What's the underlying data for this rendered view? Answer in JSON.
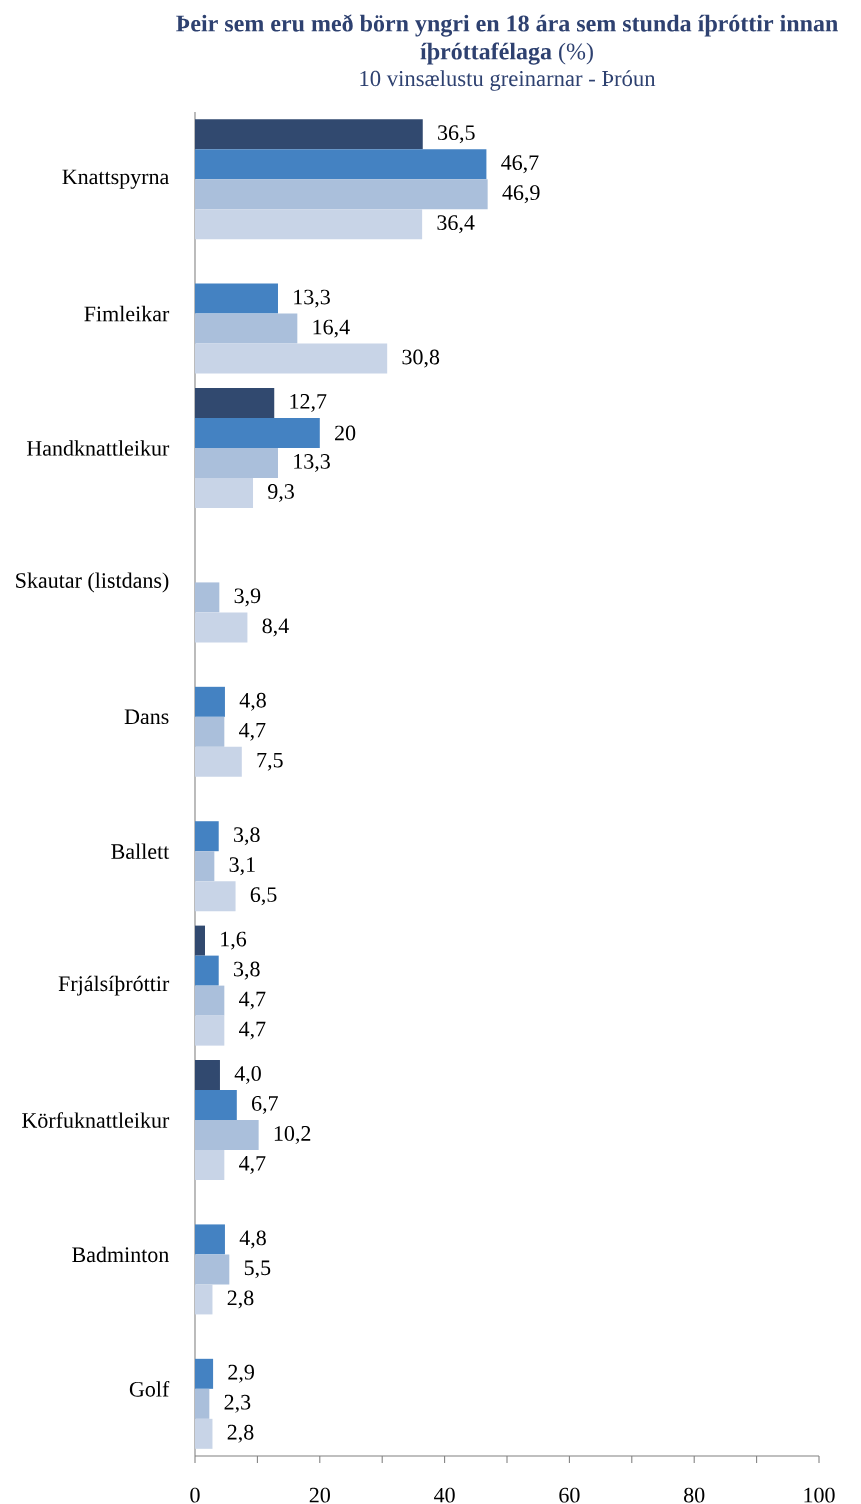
{
  "chart_data": {
    "type": "bar",
    "orientation": "horizontal",
    "title": "**Þeir sem eru með börn yngri en 18 ára sem stunda íþróttir innan íþróttafélaga** (%)",
    "subtitle": "10 vinsælustu greinarnar - Þróun",
    "categories": [
      "Knattspyrna",
      "Fimleikar",
      "Handknattleikur",
      "Skautar (listdans)",
      "Dans",
      "Ballett",
      "Frjálsíþróttir",
      "Körfuknattleikur",
      "Badminton",
      "Golf"
    ],
    "series": [
      {
        "color": "#31496f",
        "values": [
          36.5,
          null,
          12.7,
          null,
          null,
          null,
          1.6,
          4.0,
          null,
          null
        ],
        "value_labels": [
          "36,5",
          null,
          "12,7",
          null,
          null,
          null,
          "1,6",
          "4,0",
          null,
          null
        ]
      },
      {
        "color": "#4482c2",
        "values": [
          46.7,
          13.3,
          20,
          null,
          4.8,
          3.8,
          3.8,
          6.7,
          4.8,
          2.9
        ],
        "value_labels": [
          "46,7",
          "13,3",
          "20",
          null,
          "4,8",
          "3,8",
          "3,8",
          "6,7",
          "4,8",
          "2,9"
        ]
      },
      {
        "color": "#aabfdb",
        "values": [
          46.9,
          16.4,
          13.3,
          3.9,
          4.7,
          3.1,
          4.7,
          10.2,
          5.5,
          2.3
        ],
        "value_labels": [
          "46,9",
          "16,4",
          "13,3",
          "3,9",
          "4,7",
          "3,1",
          "4,7",
          "10,2",
          "5,5",
          "2,3"
        ]
      },
      {
        "color": "#c8d4e7",
        "values": [
          36.4,
          30.8,
          9.3,
          8.4,
          7.5,
          6.5,
          4.7,
          4.7,
          2.8,
          2.8
        ],
        "value_labels": [
          "36,4",
          "30,8",
          "9,3",
          "8,4",
          "7,5",
          "6,5",
          "4,7",
          "4,7",
          "2,8",
          "2,8"
        ]
      }
    ],
    "xlim": [
      0,
      100
    ],
    "xticks": [
      0,
      {
        "value": 10,
        "label": null
      },
      20,
      {
        "value": 30,
        "label": null
      },
      40,
      {
        "value": 50,
        "label": null
      },
      60,
      {
        "value": 70,
        "label": null
      },
      80,
      {
        "value": 90,
        "label": null
      },
      100
    ]
  }
}
